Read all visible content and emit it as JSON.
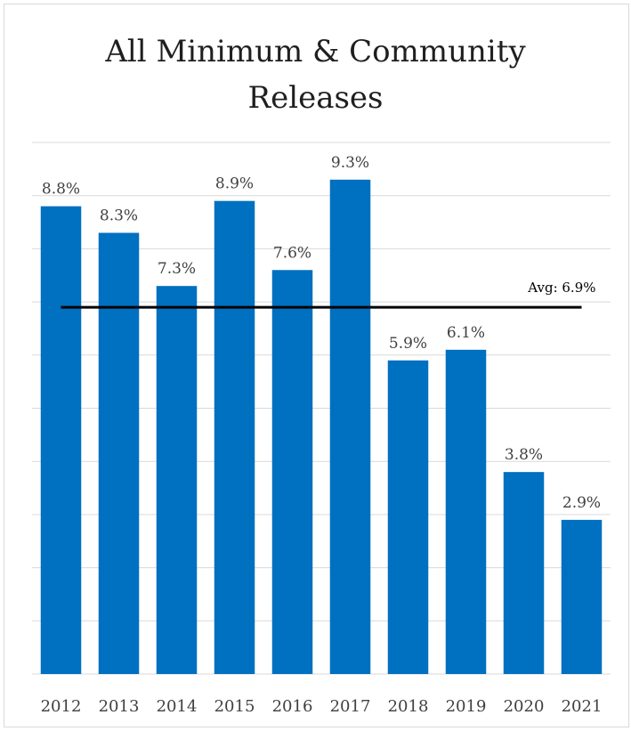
{
  "chart_data": {
    "type": "bar",
    "title_lines": [
      "All Minimum & Community",
      "Releases"
    ],
    "categories": [
      "2012",
      "2013",
      "2014",
      "2015",
      "2016",
      "2017",
      "2018",
      "2019",
      "2020",
      "2021"
    ],
    "values": [
      8.8,
      8.3,
      7.3,
      8.9,
      7.6,
      9.3,
      5.9,
      6.1,
      3.8,
      2.9
    ],
    "data_labels": [
      "8.8%",
      "8.3%",
      "7.3%",
      "8.9%",
      "7.6%",
      "9.3%",
      "5.9%",
      "6.1%",
      "3.8%",
      "2.9%"
    ],
    "xlabel": "",
    "ylabel": "",
    "ylim": [
      0,
      10
    ],
    "grid": true,
    "legend": "none",
    "reference_line": {
      "value": 6.9,
      "label": "Avg: 6.9%"
    },
    "colors": {
      "bar": "#0070c0",
      "grid": "#d9d9d9",
      "avg_line": "#000000"
    }
  }
}
